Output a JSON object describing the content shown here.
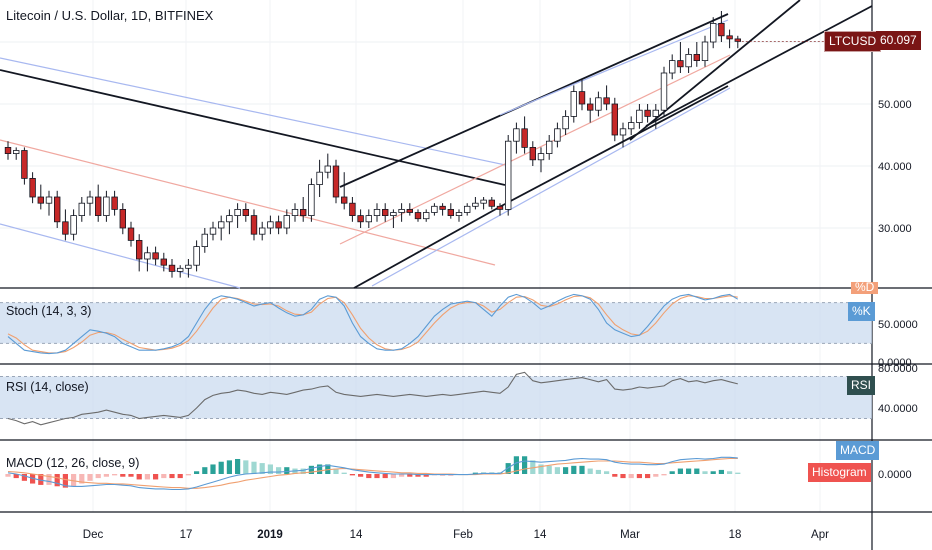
{
  "header": {
    "title": "Litecoin / U.S. Dollar, 1D, BITFINEX"
  },
  "price_tag": {
    "symbol": "LTCUSD",
    "value": "60.097"
  },
  "panels": {
    "stoch": {
      "label": "Stoch (14, 3, 3)",
      "tag_k": "%K",
      "tag_d": "%D"
    },
    "rsi": {
      "label": "RSI (14, close)",
      "tag": "RSI"
    },
    "macd": {
      "label": "MACD (12, 26, close, 9)",
      "tag_macd": "MACD",
      "tag_hist": "Histogram"
    }
  },
  "colors": {
    "up": "#ffffff",
    "down": "#c62828",
    "candle_border": "#131722",
    "blue": "#5b9bd5",
    "orange": "#f0a070",
    "band": "#c5d5ea",
    "tag_dark": "#7a1515",
    "rsi_tag": "#2f4f4f",
    "hist_up": "#2aa198",
    "hist_down": "#ef5350"
  },
  "chart_data": [
    {
      "type": "candlestick",
      "title": "Litecoin / U.S. Dollar, 1D, BITFINEX",
      "y_ticks": [
        "30.000",
        "40.000",
        "50.000"
      ],
      "ylim": [
        20,
        66
      ],
      "x_ticks": [
        "Dec",
        "17",
        "2019",
        "14",
        "Feb",
        "14",
        "Mar",
        "18",
        "Apr"
      ],
      "last_price": 60.097,
      "ohlc": [
        [
          43,
          44,
          41,
          42
        ],
        [
          42,
          43,
          41,
          42.5
        ],
        [
          42.5,
          43,
          37,
          38
        ],
        [
          38,
          39,
          34,
          35
        ],
        [
          35,
          37,
          33,
          34
        ],
        [
          34,
          36,
          32,
          35
        ],
        [
          35,
          36,
          30,
          31
        ],
        [
          31,
          33,
          28,
          29
        ],
        [
          29,
          33,
          28,
          32
        ],
        [
          32,
          35,
          31,
          34
        ],
        [
          34,
          36,
          32,
          35
        ],
        [
          35,
          37,
          31,
          32
        ],
        [
          32,
          36,
          31,
          35
        ],
        [
          35,
          36,
          32,
          33
        ],
        [
          33,
          34,
          29,
          30
        ],
        [
          30,
          31,
          27,
          28
        ],
        [
          28,
          29,
          23,
          25
        ],
        [
          25,
          27,
          23,
          26
        ],
        [
          26,
          27,
          24,
          25
        ],
        [
          25,
          26,
          23,
          24
        ],
        [
          24,
          25,
          22,
          23
        ],
        [
          23,
          24,
          22,
          23.5
        ],
        [
          23.5,
          25,
          22,
          24
        ],
        [
          24,
          28,
          23,
          27
        ],
        [
          27,
          30,
          26,
          29
        ],
        [
          29,
          31,
          28,
          30
        ],
        [
          30,
          32,
          28,
          31
        ],
        [
          31,
          33,
          29,
          32
        ],
        [
          32,
          34,
          30,
          33
        ],
        [
          33,
          34,
          31,
          32
        ],
        [
          32,
          33,
          28,
          29
        ],
        [
          29,
          31,
          28,
          30
        ],
        [
          30,
          32,
          29,
          31
        ],
        [
          31,
          32,
          29,
          30
        ],
        [
          30,
          33,
          29,
          32
        ],
        [
          32,
          34,
          31,
          33
        ],
        [
          33,
          35,
          31,
          32
        ],
        [
          32,
          38,
          31,
          37
        ],
        [
          37,
          41,
          35,
          39
        ],
        [
          39,
          42,
          38,
          40
        ],
        [
          40,
          41,
          34,
          35
        ],
        [
          35,
          39,
          33,
          34
        ],
        [
          34,
          35,
          31,
          32
        ],
        [
          32,
          33,
          30,
          31
        ],
        [
          31,
          33,
          30,
          32
        ],
        [
          32,
          34,
          31,
          33
        ],
        [
          33,
          34,
          31,
          32
        ],
        [
          32,
          33,
          30,
          32.5
        ],
        [
          32.5,
          34,
          31,
          33
        ],
        [
          33,
          34,
          32,
          32.5
        ],
        [
          32.5,
          33,
          31,
          31.5
        ],
        [
          31.5,
          33,
          31,
          32.5
        ],
        [
          32.5,
          34,
          32,
          33.5
        ],
        [
          33.5,
          34,
          32,
          33
        ],
        [
          33,
          34,
          31.5,
          32
        ],
        [
          32,
          33,
          31,
          32.5
        ],
        [
          32.5,
          34,
          32,
          33.5
        ],
        [
          33.5,
          35,
          33,
          34
        ],
        [
          34,
          35,
          33,
          34.5
        ],
        [
          34.5,
          35,
          33,
          33.5
        ],
        [
          33.5,
          34,
          32,
          33
        ],
        [
          33,
          45,
          32,
          44
        ],
        [
          44,
          47,
          42,
          46
        ],
        [
          46,
          48,
          42,
          43
        ],
        [
          43,
          44,
          40,
          41
        ],
        [
          41,
          43,
          39,
          42
        ],
        [
          42,
          45,
          41,
          44
        ],
        [
          44,
          47,
          43,
          46
        ],
        [
          46,
          49,
          45,
          48
        ],
        [
          48,
          53,
          47,
          52
        ],
        [
          52,
          54,
          49,
          50
        ],
        [
          50,
          51,
          47,
          49
        ],
        [
          49,
          52,
          48,
          51
        ],
        [
          51,
          53,
          49,
          50
        ],
        [
          50,
          51,
          44,
          45
        ],
        [
          45,
          47,
          43,
          46
        ],
        [
          46,
          48,
          45,
          47
        ],
        [
          47,
          50,
          46,
          49
        ],
        [
          49,
          50,
          47,
          48
        ],
        [
          48,
          50,
          46,
          49
        ],
        [
          49,
          56,
          48,
          55
        ],
        [
          55,
          58,
          54,
          57
        ],
        [
          57,
          60,
          55,
          56
        ],
        [
          56,
          59,
          55,
          58
        ],
        [
          58,
          60,
          56,
          57
        ],
        [
          57,
          61,
          56,
          60
        ],
        [
          60,
          64,
          59,
          63
        ],
        [
          63,
          65,
          60,
          61
        ],
        [
          61,
          62,
          59,
          60.5
        ],
        [
          60.5,
          61,
          59,
          60.1
        ]
      ]
    },
    {
      "type": "line",
      "title": "Stoch (14, 3, 3)",
      "series": [
        {
          "name": "%K"
        },
        {
          "name": "%D"
        }
      ],
      "y_ticks": [
        "50.0000",
        "0.0000"
      ],
      "band": [
        20,
        80
      ],
      "k": [
        30,
        20,
        10,
        8,
        6,
        5,
        6,
        10,
        20,
        30,
        40,
        38,
        35,
        30,
        20,
        15,
        10,
        10,
        10,
        12,
        15,
        20,
        30,
        50,
        70,
        85,
        90,
        88,
        85,
        80,
        75,
        78,
        80,
        72,
        65,
        60,
        62,
        70,
        85,
        90,
        88,
        75,
        50,
        30,
        20,
        12,
        10,
        10,
        12,
        20,
        30,
        45,
        60,
        70,
        78,
        80,
        82,
        80,
        70,
        60,
        75,
        88,
        92,
        88,
        80,
        70,
        75,
        82,
        88,
        92,
        90,
        85,
        70,
        50,
        40,
        35,
        30,
        32,
        45,
        60,
        75,
        85,
        90,
        92,
        88,
        84,
        86,
        90,
        92,
        85
      ],
      "d": [
        34,
        28,
        18,
        10,
        8,
        6,
        6,
        8,
        14,
        22,
        32,
        36,
        36,
        33,
        26,
        20,
        14,
        12,
        10,
        11,
        13,
        17,
        24,
        38,
        55,
        72,
        85,
        88,
        86,
        82,
        78,
        77,
        78,
        75,
        68,
        63,
        62,
        66,
        78,
        86,
        88,
        80,
        62,
        42,
        28,
        18,
        12,
        10,
        11,
        15,
        22,
        36,
        50,
        62,
        72,
        78,
        80,
        80,
        75,
        66,
        70,
        80,
        88,
        89,
        84,
        76,
        74,
        78,
        84,
        89,
        90,
        87,
        78,
        62,
        48,
        40,
        34,
        32,
        38,
        50,
        65,
        78,
        86,
        90,
        89,
        86,
        86,
        88,
        90,
        88
      ]
    },
    {
      "type": "line",
      "title": "RSI (14, close)",
      "series": [
        {
          "name": "RSI"
        }
      ],
      "y_ticks": [
        "80.0000",
        "40.0000"
      ],
      "band": [
        30,
        70
      ],
      "values": [
        30,
        28,
        25,
        27,
        24,
        26,
        28,
        30,
        31,
        34,
        35,
        36,
        38,
        36,
        34,
        33,
        30,
        31,
        32,
        33,
        32,
        31,
        33,
        40,
        48,
        52,
        54,
        55,
        57,
        56,
        54,
        53,
        55,
        54,
        53,
        55,
        57,
        58,
        60,
        61,
        55,
        53,
        52,
        51,
        52,
        53,
        52,
        51,
        52,
        53,
        52,
        51,
        52,
        53,
        52,
        53,
        54,
        55,
        56,
        55,
        54,
        60,
        72,
        74,
        66,
        64,
        65,
        66,
        67,
        68,
        69,
        67,
        65,
        67,
        58,
        57,
        58,
        60,
        59,
        60,
        61,
        66,
        68,
        65,
        66,
        64,
        66,
        67,
        65,
        63
      ]
    },
    {
      "type": "bar",
      "title": "MACD (12, 26, close, 9)",
      "series": [
        {
          "name": "MACD"
        },
        {
          "name": "Signal"
        },
        {
          "name": "Histogram"
        }
      ],
      "y_ticks": [
        "0.0000"
      ],
      "macd": [
        0.2,
        0,
        -0.3,
        -0.7,
        -1.0,
        -1.2,
        -1.5,
        -1.9,
        -2.0,
        -2.0,
        -1.9,
        -1.8,
        -1.7,
        -1.7,
        -1.8,
        -1.9,
        -2.2,
        -2.3,
        -2.4,
        -2.4,
        -2.5,
        -2.5,
        -2.4,
        -2.1,
        -1.7,
        -1.3,
        -0.9,
        -0.5,
        -0.2,
        0,
        0.1,
        0.2,
        0.3,
        0.3,
        0.4,
        0.5,
        0.6,
        0.9,
        1.2,
        1.4,
        1.2,
        1.0,
        0.7,
        0.5,
        0.3,
        0.2,
        0.1,
        0.0,
        0.0,
        0.0,
        -0.1,
        -0.1,
        -0.1,
        -0.1,
        -0.1,
        -0.1,
        -0.1,
        0.0,
        0.1,
        0.1,
        0.1,
        1.0,
        1.8,
        2.1,
        2.0,
        1.9,
        2.0,
        2.1,
        2.2,
        2.4,
        2.5,
        2.4,
        2.4,
        2.3,
        1.9,
        1.7,
        1.6,
        1.6,
        1.5,
        1.5,
        1.6,
        2.0,
        2.3,
        2.4,
        2.5,
        2.4,
        2.5,
        2.7,
        2.7,
        2.6
      ],
      "signal": [
        0.4,
        0.3,
        0.2,
        0,
        -0.2,
        -0.4,
        -0.6,
        -0.9,
        -1.1,
        -1.3,
        -1.4,
        -1.5,
        -1.5,
        -1.6,
        -1.6,
        -1.7,
        -1.8,
        -1.9,
        -2.0,
        -2.1,
        -2.2,
        -2.2,
        -2.3,
        -2.3,
        -2.2,
        -2.0,
        -1.8,
        -1.5,
        -1.3,
        -1.0,
        -0.8,
        -0.6,
        -0.4,
        -0.2,
        -0.1,
        0.1,
        0.2,
        0.3,
        0.5,
        0.7,
        0.8,
        0.9,
        0.8,
        0.7,
        0.6,
        0.5,
        0.4,
        0.3,
        0.2,
        0.2,
        0.1,
        0.1,
        0.0,
        0.0,
        0.0,
        -0.1,
        -0.1,
        -0.1,
        0.0,
        0.0,
        0.0,
        0.2,
        0.5,
        0.8,
        1.0,
        1.2,
        1.4,
        1.6,
        1.7,
        1.8,
        1.9,
        2.0,
        2.1,
        2.1,
        2.1,
        2.0,
        1.9,
        1.9,
        1.8,
        1.7,
        1.7,
        1.8,
        1.9,
        2.0,
        2.1,
        2.2,
        2.3,
        2.4,
        2.5,
        2.5
      ]
    }
  ]
}
